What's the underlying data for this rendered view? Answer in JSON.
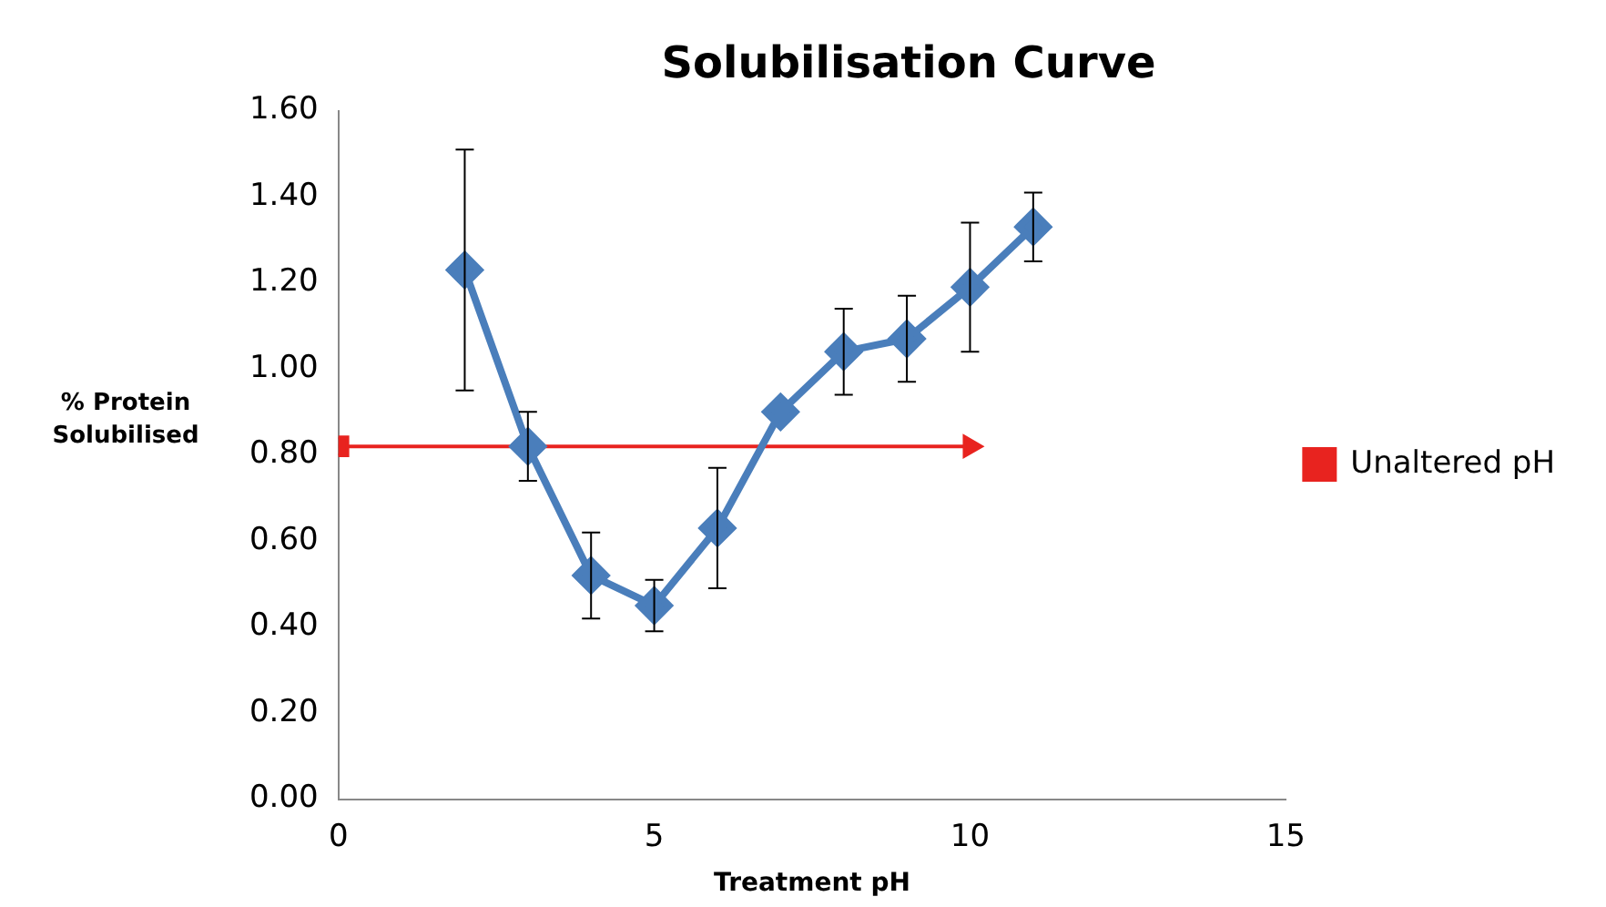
{
  "chart_data": {
    "type": "line",
    "title": "Solubilisation Curve",
    "xlabel": "Treatment pH",
    "ylabel": "% Protein Solubilised",
    "xlim": [
      0,
      15
    ],
    "xticks": [
      0,
      5,
      10,
      15
    ],
    "ylim": [
      0,
      1.6
    ],
    "yticks": [
      {
        "value": 0,
        "label": "0.00"
      },
      {
        "value": 0.2,
        "label": "0.20"
      },
      {
        "value": 0.4,
        "label": "0.40"
      },
      {
        "value": 0.6,
        "label": "0.60"
      },
      {
        "value": 0.8,
        "label": "0.80"
      },
      {
        "value": 1,
        "label": "1.00"
      },
      {
        "value": 1.2,
        "label": "1.20"
      },
      {
        "value": 1.4,
        "label": "1.40"
      },
      {
        "value": 1.6,
        "label": "1.60"
      }
    ],
    "grid": false,
    "legend": "right",
    "series": [
      {
        "color": "#4a7ebb",
        "marker": "diamond",
        "x": [
          2,
          3,
          4,
          5,
          6,
          7,
          8,
          9,
          10,
          11
        ],
        "values": [
          1.23,
          0.82,
          0.52,
          0.45,
          0.63,
          0.9,
          1.04,
          1.07,
          1.19,
          1.33
        ],
        "errors": [
          0.28,
          0.08,
          0.1,
          0.06,
          0.14,
          null,
          0.1,
          0.1,
          0.15,
          0.08
        ]
      },
      {
        "name": "Unaltered pH",
        "type": "line",
        "color": "#e8231f",
        "marker": "square",
        "x": [
          0,
          10
        ],
        "values": [
          0.82,
          0.82
        ]
      }
    ]
  }
}
